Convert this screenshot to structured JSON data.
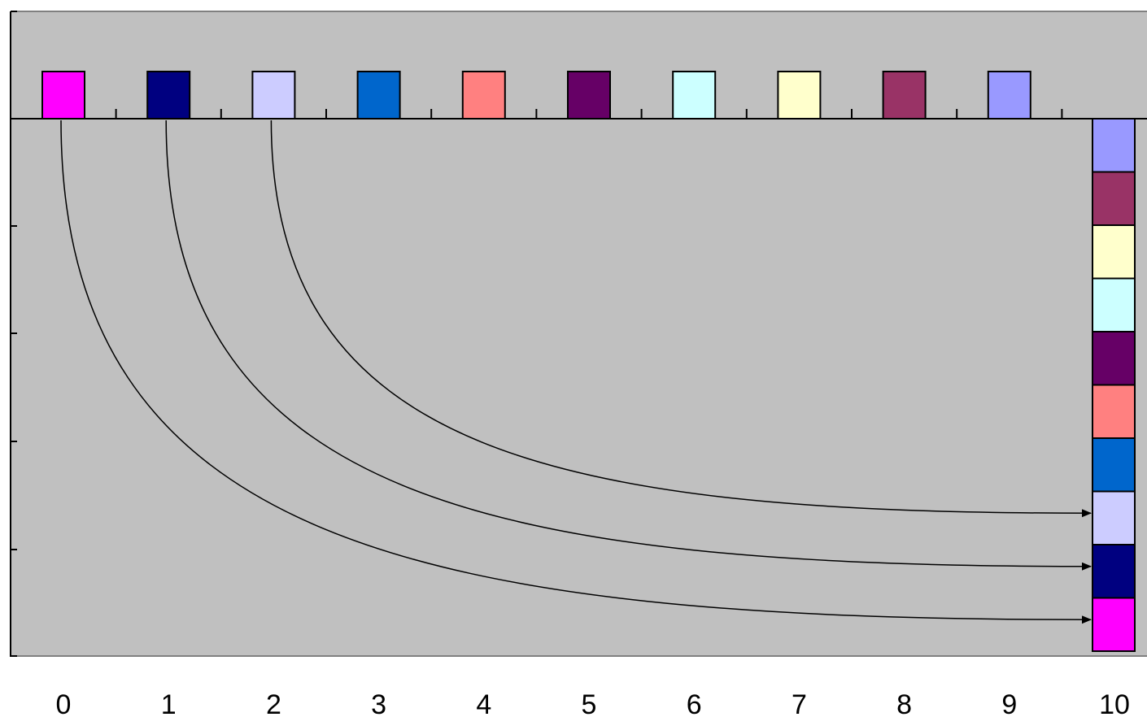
{
  "diagram": {
    "background_color": "#c0c0c0",
    "axis_labels": [
      "0",
      "1",
      "2",
      "3",
      "4",
      "5",
      "6",
      "7",
      "8",
      "9",
      "10"
    ],
    "source_squares": [
      {
        "index": 0,
        "color": "#ff00ff"
      },
      {
        "index": 1,
        "color": "#000080"
      },
      {
        "index": 2,
        "color": "#ccccff"
      },
      {
        "index": 3,
        "color": "#0066cc"
      },
      {
        "index": 4,
        "color": "#ff8080"
      },
      {
        "index": 5,
        "color": "#660066"
      },
      {
        "index": 6,
        "color": "#ccffff"
      },
      {
        "index": 7,
        "color": "#ffffcc"
      },
      {
        "index": 8,
        "color": "#993366"
      },
      {
        "index": 9,
        "color": "#9999ff"
      }
    ],
    "stack_order_top_to_bottom": [
      9,
      8,
      7,
      6,
      5,
      4,
      3,
      2,
      1,
      0
    ],
    "arrows": [
      {
        "from": 0,
        "to_stack_position": 0
      },
      {
        "from": 1,
        "to_stack_position": 1
      },
      {
        "from": 2,
        "to_stack_position": 2
      }
    ]
  }
}
